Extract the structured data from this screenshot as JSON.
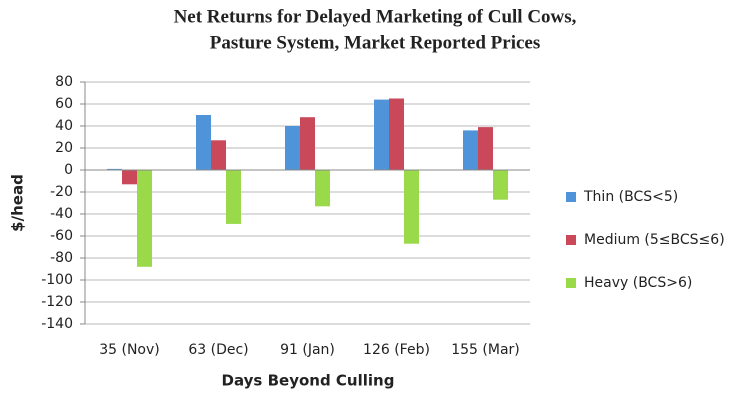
{
  "chart_data": {
    "type": "bar",
    "title": [
      "Net Returns for Delayed Marketing of Cull Cows,",
      "Pasture System, Market Reported Prices"
    ],
    "x_label": "Days Beyond Culling",
    "y_label": "$/head",
    "categories": [
      "35 (Nov)",
      "63 (Dec)",
      "91 (Jan)",
      "126 (Feb)",
      "155 (Mar)"
    ],
    "series": [
      {
        "name": "Thin (BCS<5)",
        "color": "#4f94d9",
        "values": [
          1,
          50,
          40,
          64,
          36
        ]
      },
      {
        "name": "Medium (5≤BCS≤6)",
        "color": "#c9485a",
        "values": [
          -13,
          27,
          48,
          65,
          39
        ]
      },
      {
        "name": "Heavy (BCS>6)",
        "color": "#99d94a",
        "values": [
          -88,
          -49,
          -33,
          -67,
          -27
        ]
      }
    ],
    "ylim": [
      -140,
      80
    ],
    "yticks": [
      -140,
      -120,
      -100,
      -80,
      -60,
      -40,
      -20,
      0,
      20,
      40,
      60,
      80
    ],
    "grid": true,
    "legend": "right"
  }
}
